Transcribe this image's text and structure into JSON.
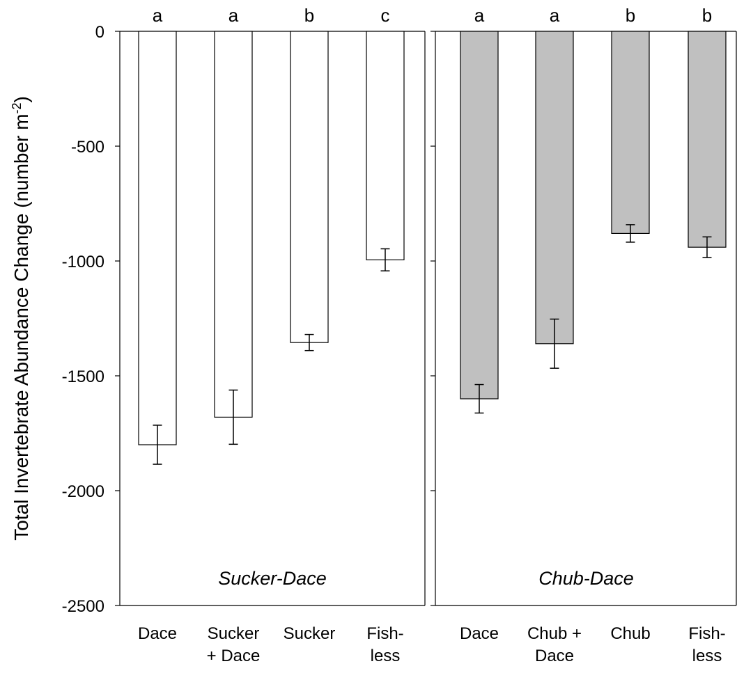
{
  "chart_data": {
    "type": "bar",
    "ylabel": "Total Invertebrate Abundance Change (number m",
    "ylabel_sup": "-2",
    "ylabel_end": ")",
    "ylim": [
      -2500,
      0
    ],
    "yticks": [
      0,
      -500,
      -1000,
      -1500,
      -2000,
      -2500
    ],
    "ytick_labels": [
      "0",
      "-500",
      "-1000",
      "-1500",
      "-2000",
      "-2500"
    ],
    "panels": [
      {
        "title": "Sucker-Dace",
        "bar_color": "#ffffff",
        "categories": [
          [
            "Dace"
          ],
          [
            "Sucker",
            "+ Dace"
          ],
          [
            "Sucker"
          ],
          [
            "Fish-",
            "less"
          ]
        ],
        "values": [
          -1800,
          -1680,
          -1355,
          -995
        ],
        "errors": [
          85,
          118,
          35,
          48
        ],
        "letters": [
          "a",
          "a",
          "b",
          "c"
        ]
      },
      {
        "title": "Chub-Dace",
        "bar_color": "#c0c0c0",
        "categories": [
          [
            "Dace"
          ],
          [
            "Chub +",
            "Dace"
          ],
          [
            "Chub"
          ],
          [
            "Fish-",
            "less"
          ]
        ],
        "values": [
          -1600,
          -1360,
          -880,
          -940
        ],
        "errors": [
          62,
          107,
          38,
          45
        ],
        "letters": [
          "a",
          "a",
          "b",
          "b"
        ]
      }
    ]
  }
}
